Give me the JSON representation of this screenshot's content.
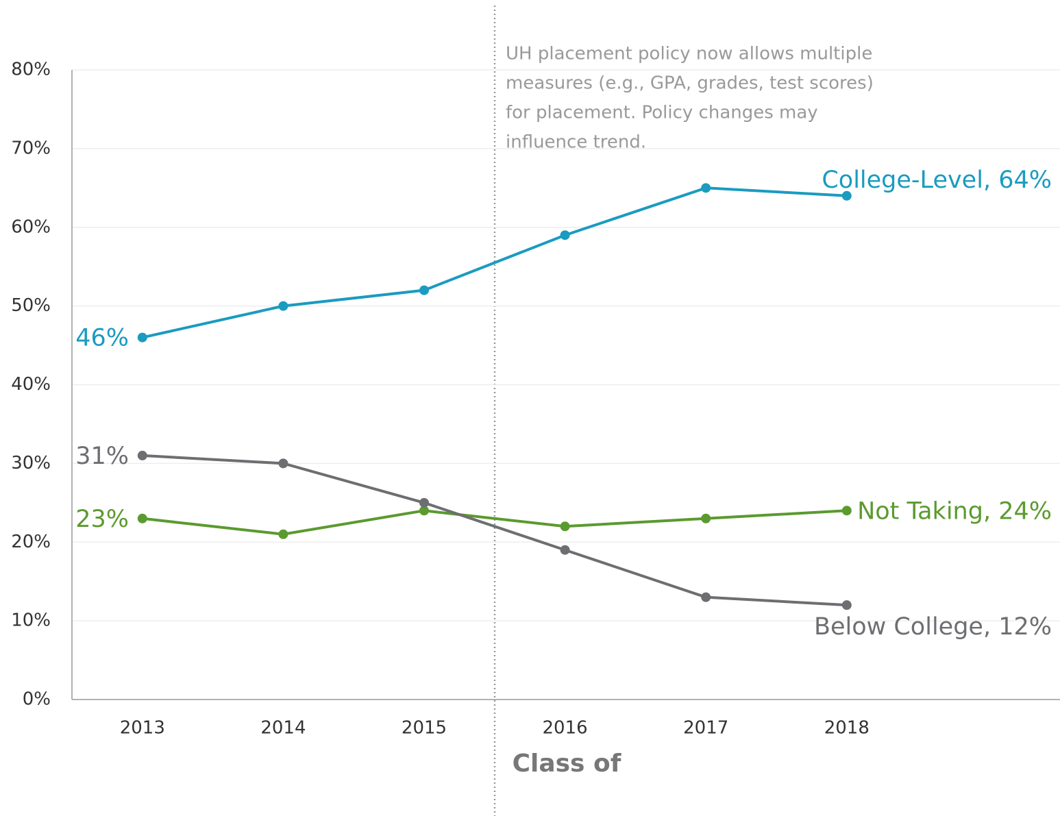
{
  "chart_data": {
    "type": "line",
    "x_label": "Class of",
    "annotation": [
      "UH placement policy now allows multiple",
      "measures (e.g., GPA, grades, test scores)",
      "for placement. Policy changes may",
      "influence trend."
    ],
    "categories": [
      "2013",
      "2014",
      "2015",
      "2016",
      "2017",
      "2018"
    ],
    "series": [
      {
        "color": "#1a9bc0",
        "values": [
          46,
          50,
          52,
          59,
          65,
          64
        ],
        "value_labels": [
          "46%",
          null,
          null,
          null,
          null,
          "College-Level, 64%"
        ]
      },
      {
        "color": "#5b9a2f",
        "values": [
          23,
          21,
          24,
          22,
          23,
          24
        ],
        "value_labels": [
          "23%",
          null,
          null,
          null,
          null,
          "Not Taking, 24%"
        ]
      },
      {
        "color": "#6d6e71",
        "values": [
          31,
          30,
          25,
          19,
          13,
          12
        ],
        "value_labels": [
          "31%",
          null,
          null,
          null,
          null,
          "Below College, 12%"
        ]
      }
    ],
    "ylim": [
      0,
      80
    ],
    "yticks": [
      {
        "value": 0,
        "label": "0%"
      },
      {
        "value": 10,
        "label": "10%"
      },
      {
        "value": 20,
        "label": "20%"
      },
      {
        "value": 30,
        "label": "30%"
      },
      {
        "value": 40,
        "label": "40%"
      },
      {
        "value": 50,
        "label": "50%"
      },
      {
        "value": 60,
        "label": "60%"
      },
      {
        "value": 70,
        "label": "70%"
      },
      {
        "value": 80,
        "label": "80%"
      }
    ],
    "grid": true
  }
}
